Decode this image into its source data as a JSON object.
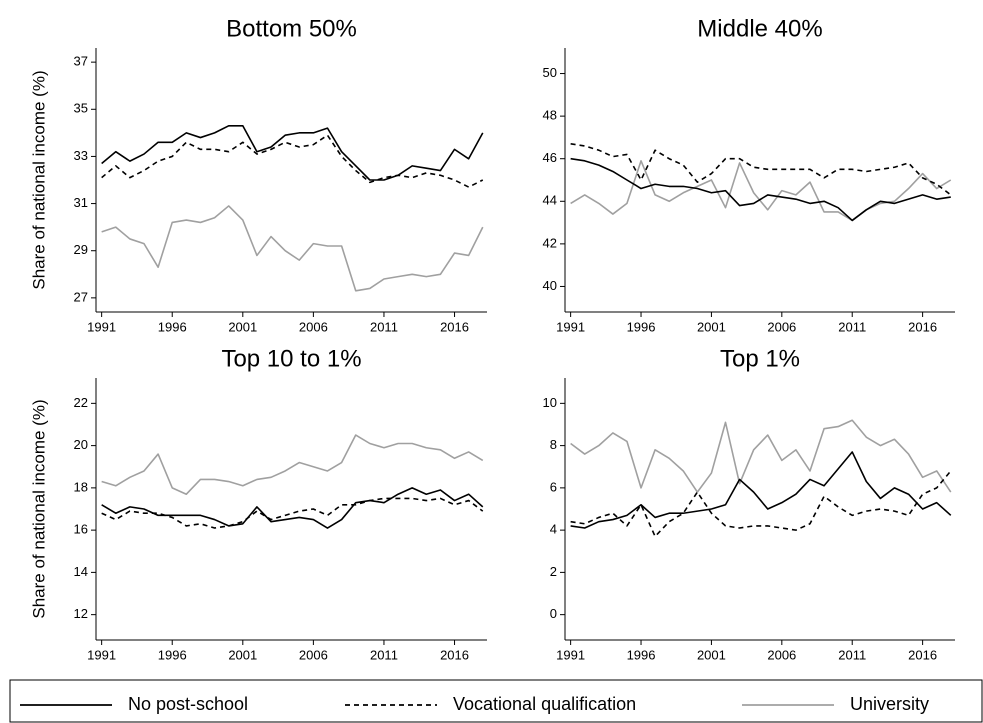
{
  "legend": [
    {
      "name": "No post-school",
      "color": "#000000",
      "dash": "none"
    },
    {
      "name": "Vocational qualification",
      "color": "#000000",
      "dash": "5,4"
    },
    {
      "name": "University",
      "color": "#a0a0a0",
      "dash": "none"
    }
  ],
  "chart_data": [
    {
      "type": "line",
      "title": "Bottom 50%",
      "y_label": "Share of national income (%)",
      "x": [
        1991,
        1992,
        1993,
        1994,
        1995,
        1996,
        1997,
        1998,
        1999,
        2000,
        2001,
        2002,
        2003,
        2004,
        2005,
        2006,
        2007,
        2008,
        2009,
        2010,
        2011,
        2012,
        2013,
        2014,
        2015,
        2016,
        2017,
        2018
      ],
      "xlim": [
        1990.6,
        2018.3
      ],
      "xticks": [
        1991,
        1996,
        2001,
        2006,
        2011,
        2016
      ],
      "ylim": [
        26.4,
        37.6
      ],
      "yticks": [
        27,
        29,
        31,
        33,
        35,
        37
      ],
      "series": [
        {
          "values": [
            32.7,
            33.2,
            32.8,
            33.1,
            33.6,
            33.6,
            34.0,
            33.8,
            34.0,
            34.3,
            34.3,
            33.2,
            33.4,
            33.9,
            34.0,
            34.0,
            34.2,
            33.2,
            32.6,
            32.0,
            32.0,
            32.2,
            32.6,
            32.5,
            32.4,
            33.3,
            32.9,
            34.0
          ]
        },
        {
          "values": [
            32.1,
            32.6,
            32.1,
            32.4,
            32.8,
            33.0,
            33.6,
            33.3,
            33.3,
            33.2,
            33.6,
            33.1,
            33.3,
            33.6,
            33.4,
            33.5,
            33.9,
            33.0,
            32.4,
            31.9,
            32.1,
            32.2,
            32.1,
            32.3,
            32.2,
            32.0,
            31.7,
            32.0
          ]
        },
        {
          "values": [
            29.8,
            30.0,
            29.5,
            29.3,
            28.3,
            30.2,
            30.3,
            30.2,
            30.4,
            30.9,
            30.3,
            28.8,
            29.6,
            29.0,
            28.6,
            29.3,
            29.2,
            29.2,
            27.3,
            27.4,
            27.8,
            27.9,
            28.0,
            27.9,
            28.0,
            28.9,
            28.8,
            30.0
          ]
        }
      ]
    },
    {
      "type": "line",
      "title": "Middle 40%",
      "x": [
        1991,
        1992,
        1993,
        1994,
        1995,
        1996,
        1997,
        1998,
        1999,
        2000,
        2001,
        2002,
        2003,
        2004,
        2005,
        2006,
        2007,
        2008,
        2009,
        2010,
        2011,
        2012,
        2013,
        2014,
        2015,
        2016,
        2017,
        2018
      ],
      "xlim": [
        1990.6,
        2018.3
      ],
      "xticks": [
        1991,
        1996,
        2001,
        2006,
        2011,
        2016
      ],
      "ylim": [
        38.8,
        51.2
      ],
      "yticks": [
        40,
        42,
        44,
        46,
        48,
        50
      ],
      "series": [
        {
          "values": [
            46.0,
            45.9,
            45.7,
            45.4,
            45.0,
            44.6,
            44.8,
            44.7,
            44.7,
            44.6,
            44.4,
            44.5,
            43.8,
            43.9,
            44.3,
            44.2,
            44.1,
            43.9,
            44.0,
            43.7,
            43.1,
            43.6,
            44.0,
            43.9,
            44.1,
            44.3,
            44.1,
            44.2
          ]
        },
        {
          "values": [
            46.7,
            46.6,
            46.4,
            46.1,
            46.2,
            45.0,
            46.4,
            46.0,
            45.7,
            44.9,
            45.3,
            46.0,
            46.0,
            45.6,
            45.5,
            45.5,
            45.5,
            45.5,
            45.1,
            45.5,
            45.5,
            45.4,
            45.5,
            45.6,
            45.8,
            45.1,
            44.8,
            44.3
          ]
        },
        {
          "values": [
            43.9,
            44.3,
            43.9,
            43.4,
            43.9,
            45.9,
            44.3,
            44.0,
            44.4,
            44.7,
            45.0,
            43.7,
            45.8,
            44.4,
            43.6,
            44.5,
            44.3,
            44.9,
            43.5,
            43.5,
            43.1,
            43.6,
            43.9,
            44.0,
            44.6,
            45.3,
            44.6,
            45.0
          ]
        }
      ]
    },
    {
      "type": "line",
      "title": "Top 10 to 1%",
      "y_label": "Share of national income (%)",
      "x": [
        1991,
        1992,
        1993,
        1994,
        1995,
        1996,
        1997,
        1998,
        1999,
        2000,
        2001,
        2002,
        2003,
        2004,
        2005,
        2006,
        2007,
        2008,
        2009,
        2010,
        2011,
        2012,
        2013,
        2014,
        2015,
        2016,
        2017,
        2018
      ],
      "xlim": [
        1990.6,
        2018.3
      ],
      "xticks": [
        1991,
        1996,
        2001,
        2006,
        2011,
        2016
      ],
      "ylim": [
        10.8,
        23.2
      ],
      "yticks": [
        12,
        14,
        16,
        18,
        20,
        22
      ],
      "series": [
        {
          "values": [
            17.2,
            16.8,
            17.1,
            17.0,
            16.7,
            16.7,
            16.7,
            16.7,
            16.5,
            16.2,
            16.3,
            17.1,
            16.4,
            16.5,
            16.6,
            16.5,
            16.1,
            16.5,
            17.3,
            17.4,
            17.3,
            17.7,
            18.0,
            17.7,
            17.9,
            17.4,
            17.7,
            17.1
          ]
        },
        {
          "values": [
            16.8,
            16.5,
            16.9,
            16.8,
            16.8,
            16.6,
            16.2,
            16.3,
            16.1,
            16.2,
            16.4,
            16.9,
            16.5,
            16.7,
            16.9,
            17.0,
            16.7,
            17.2,
            17.2,
            17.4,
            17.5,
            17.5,
            17.5,
            17.4,
            17.5,
            17.2,
            17.4,
            16.9
          ]
        },
        {
          "values": [
            18.3,
            18.1,
            18.5,
            18.8,
            19.6,
            18.0,
            17.7,
            18.4,
            18.4,
            18.3,
            18.1,
            18.4,
            18.5,
            18.8,
            19.2,
            19.0,
            18.8,
            19.2,
            20.5,
            20.1,
            19.9,
            20.1,
            20.1,
            19.9,
            19.8,
            19.4,
            19.7,
            19.3
          ]
        }
      ]
    },
    {
      "type": "line",
      "title": "Top 1%",
      "x": [
        1991,
        1992,
        1993,
        1994,
        1995,
        1996,
        1997,
        1998,
        1999,
        2000,
        2001,
        2002,
        2003,
        2004,
        2005,
        2006,
        2007,
        2008,
        2009,
        2010,
        2011,
        2012,
        2013,
        2014,
        2015,
        2016,
        2017,
        2018
      ],
      "xlim": [
        1990.6,
        2018.3
      ],
      "xticks": [
        1991,
        1996,
        2001,
        2006,
        2011,
        2016
      ],
      "ylim": [
        -1.2,
        11.2
      ],
      "yticks": [
        0,
        2,
        4,
        6,
        8,
        10
      ],
      "series": [
        {
          "values": [
            4.2,
            4.1,
            4.4,
            4.5,
            4.7,
            5.2,
            4.6,
            4.8,
            4.8,
            4.9,
            5.0,
            5.2,
            6.4,
            5.8,
            5.0,
            5.3,
            5.7,
            6.4,
            6.1,
            6.9,
            7.7,
            6.3,
            5.5,
            6.0,
            5.7,
            5.0,
            5.3,
            4.7
          ]
        },
        {
          "values": [
            4.4,
            4.3,
            4.6,
            4.8,
            4.2,
            5.2,
            3.7,
            4.4,
            4.8,
            5.8,
            4.8,
            4.2,
            4.1,
            4.2,
            4.2,
            4.1,
            4.0,
            4.3,
            5.6,
            5.1,
            4.7,
            4.9,
            5.0,
            4.9,
            4.7,
            5.7,
            6.0,
            6.8
          ]
        },
        {
          "values": [
            8.1,
            7.6,
            8.0,
            8.6,
            8.2,
            6.0,
            7.8,
            7.4,
            6.8,
            5.8,
            6.7,
            9.1,
            6.2,
            7.8,
            8.5,
            7.3,
            7.8,
            6.8,
            8.8,
            8.9,
            9.2,
            8.4,
            8.0,
            8.3,
            7.6,
            6.5,
            6.8,
            5.8
          ]
        }
      ]
    }
  ]
}
